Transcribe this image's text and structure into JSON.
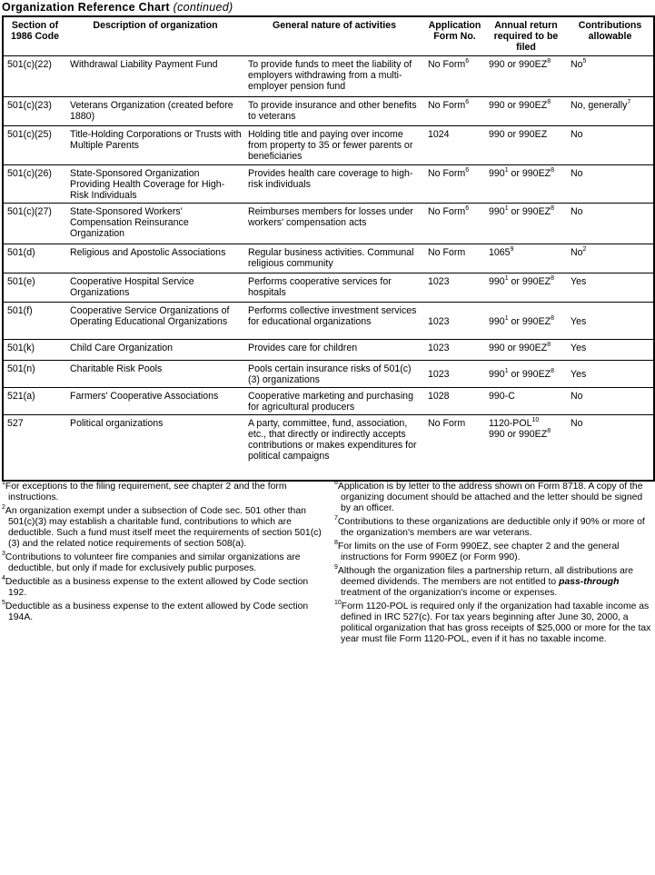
{
  "title": {
    "main": "Organization Reference Chart",
    "sub": "(continued)"
  },
  "headers": [
    "Section of 1986 Code",
    "Description of organization",
    "General nature of activities",
    "Application Form No.",
    "Annual return required to be filed",
    "Contributions allowable"
  ],
  "rows": [
    {
      "code": "501(c)(22)",
      "desc": "Withdrawal Liability Payment Fund",
      "act": "To provide funds to meet the liability of employers withdrawing from a multi-employer pension fund",
      "form": "No Form",
      "form_sup": "6",
      "ret": [
        {
          "t": "990 or 990EZ",
          "s": "8"
        }
      ],
      "contrib": "No",
      "contrib_sup": "5"
    },
    {
      "code": "501(c)(23)",
      "desc": "Veterans Organization (created before 1880)",
      "act": "To provide insurance and other benefits to veterans",
      "form": "No Form",
      "form_sup": "6",
      "ret": [
        {
          "t": "990 or 990EZ",
          "s": "8"
        }
      ],
      "contrib": "No, generally",
      "contrib_sup": "7"
    },
    {
      "code": "501(c)(25)",
      "desc": "Title-Holding Corporations or Trusts with Multiple Parents",
      "act": "Holding title and paying over income from property to 35 or fewer parents or beneficiaries",
      "form": "1024",
      "form_sup": "",
      "ret": [
        {
          "t": "990 or 990EZ",
          "s": ""
        }
      ],
      "contrib": "No",
      "contrib_sup": ""
    },
    {
      "code": "501(c)(26)",
      "desc": "State-Sponsored Organization Providing Health Coverage for High-Risk Individuals",
      "act": "Provides health care coverage to high-risk individuals",
      "form": "No Form",
      "form_sup": "6",
      "ret": [
        {
          "t": "990",
          "s": "1"
        },
        {
          "t": " or 990EZ",
          "s": "8"
        }
      ],
      "contrib": "No",
      "contrib_sup": ""
    },
    {
      "code": "501(c)(27)",
      "desc": "State-Sponsored Workers' Compensation Reinsurance Organization",
      "act": "Reimburses members for losses under workers' compensation acts",
      "form": "No Form",
      "form_sup": "6",
      "ret": [
        {
          "t": "990",
          "s": "1"
        },
        {
          "t": " or 990EZ",
          "s": "8"
        }
      ],
      "contrib": "No",
      "contrib_sup": ""
    },
    {
      "code": "501(d)",
      "desc": "Religious and Apostolic Associations",
      "act": "Regular business activities. Communal religious community",
      "form": "No Form",
      "form_sup": "",
      "ret": [
        {
          "t": "1065",
          "s": "9"
        }
      ],
      "contrib": "No",
      "contrib_sup": "2"
    },
    {
      "code": "501(e)",
      "desc": "Cooperative Hospital Service Organizations",
      "act": "Performs cooperative services for hospitals",
      "form": "1023",
      "form_sup": "",
      "ret": [
        {
          "t": "990",
          "s": "1"
        },
        {
          "t": " or 990EZ",
          "s": "8"
        }
      ],
      "contrib": "Yes",
      "contrib_sup": ""
    },
    {
      "code": "501(f)",
      "desc": "Cooperative Service Organizations of Operating Educational Organizations",
      "act": "Performs collective investment services for educational organizations",
      "form": "1023",
      "form_sup": "",
      "ret": [
        {
          "t": "990",
          "s": "1"
        },
        {
          "t": " or 990EZ",
          "s": "8"
        }
      ],
      "contrib": "Yes",
      "contrib_sup": "",
      "mid": true
    },
    {
      "code": "501(k)",
      "desc": "Child Care Organization",
      "act": "Provides care for children",
      "form": "1023",
      "form_sup": "",
      "ret": [
        {
          "t": "990 or 990EZ",
          "s": "8"
        }
      ],
      "contrib": "Yes",
      "contrib_sup": ""
    },
    {
      "code": "501(n)",
      "desc": "Charitable Risk Pools",
      "act": "Pools certain insurance risks of 501(c)(3) organizations",
      "form": "1023",
      "form_sup": "",
      "ret": [
        {
          "t": "990",
          "s": "1"
        },
        {
          "t": " or 990EZ",
          "s": "8"
        }
      ],
      "contrib": "Yes",
      "contrib_sup": "",
      "mid": true
    },
    {
      "code": "521(a)",
      "desc": "Farmers' Cooperative Associations",
      "act": "Cooperative marketing and purchasing for agricultural producers",
      "form": "1028",
      "form_sup": "",
      "ret": [
        {
          "t": "990-C",
          "s": ""
        }
      ],
      "contrib": "No",
      "contrib_sup": ""
    },
    {
      "code": "527",
      "desc": "Political organizations",
      "act": "A party, committee, fund, association, etc., that directly or indirectly accepts contributions or makes expenditures for political campaigns",
      "form": "No Form",
      "form_sup": "",
      "ret": [
        {
          "t": "1120-POL",
          "s": "10",
          "br": true
        },
        {
          "t": "990 or 990EZ",
          "s": "8"
        }
      ],
      "contrib": "No",
      "contrib_sup": ""
    }
  ],
  "footnotes_left": [
    {
      "n": "1",
      "text": "For exceptions to the filing requirement, see chapter 2 and the form instructions."
    },
    {
      "n": "2",
      "text": "An organization exempt under a subsection of Code sec. 501 other than 501(c)(3) may establish a charitable fund, contributions to which are deductible. Such a fund must itself meet the requirements of section 501(c)(3) and the related notice requirements of section 508(a)."
    },
    {
      "n": "3",
      "text": "Contributions to volunteer fire companies and similar organizations are deductible, but only if made for exclusively public purposes."
    },
    {
      "n": "4",
      "text": "Deductible as a business expense to the extent allowed by Code section 192."
    },
    {
      "n": "5",
      "text": "Deductible as a business expense to the extent allowed by Code section 194A."
    }
  ],
  "footnotes_right": [
    {
      "n": "6",
      "text": "Application is by letter to the address shown on Form 8718. A copy of the organizing document should be attached and the letter should be signed by an officer."
    },
    {
      "n": "7",
      "text": "Contributions to these organizations are deductible only if 90% or more of the organization's members are war veterans."
    },
    {
      "n": "8",
      "text": "For limits on the use of Form 990EZ, see chapter 2 and the general instructions for Form 990EZ (or Form 990)."
    },
    {
      "n": "9",
      "text": "Although the organization files a partnership return, all distributions are deemed dividends. The members are not entitled to ",
      "em": "pass-through",
      "after": " treatment of the organization's income or expenses."
    },
    {
      "n": "10",
      "text": "Form 1120-POL is required only if the organization had taxable income as defined in IRC 527(c). For tax years beginning after June 30, 2000, a political organization that has gross receipts of $25,000 or more for the tax year must file Form 1120-POL, even if it has no taxable income."
    }
  ]
}
